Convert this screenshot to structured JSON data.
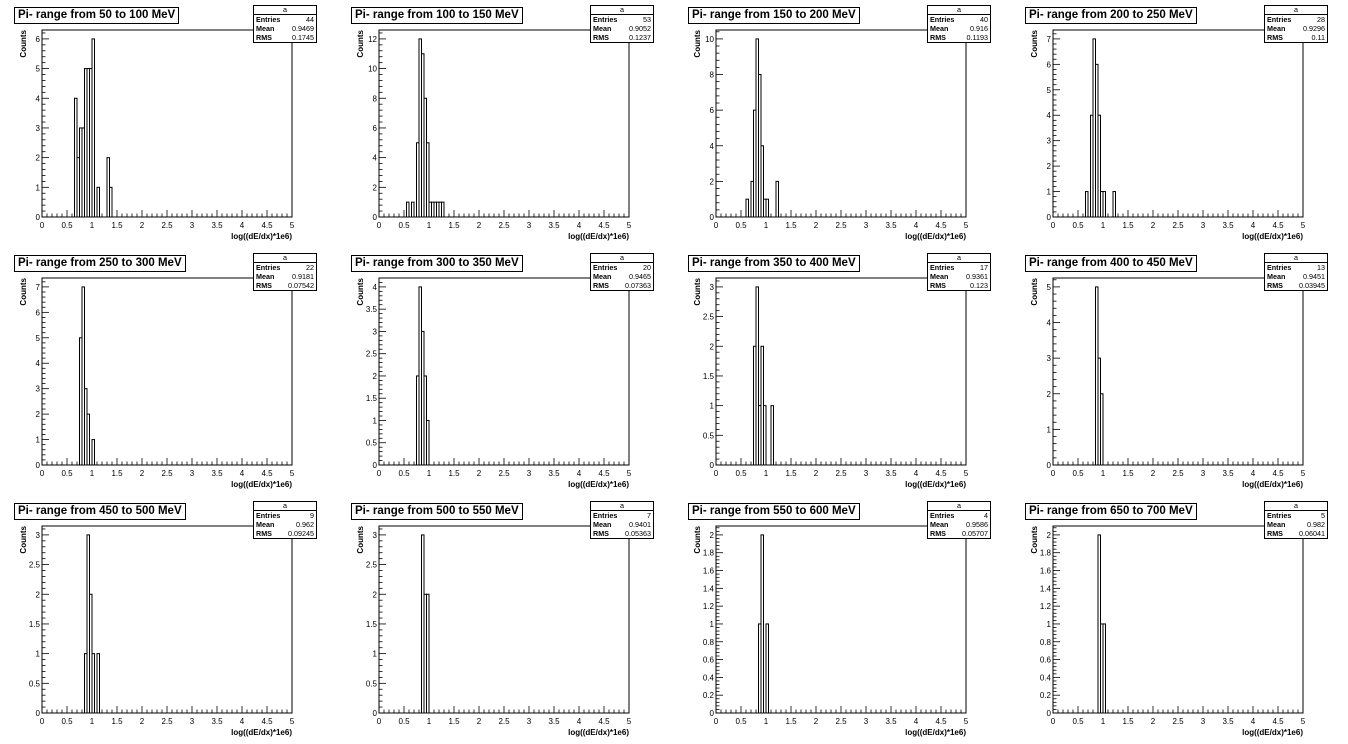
{
  "plots": [
    {
      "title": "Pi- range from 50 to 100 MeV",
      "stats": {
        "name": "a",
        "entries": "44",
        "mean": "0.9469",
        "rms": "0.1745"
      }
    },
    {
      "title": "Pi- range from 100 to 150 MeV",
      "stats": {
        "name": "a",
        "entries": "53",
        "mean": "0.9052",
        "rms": "0.1237"
      }
    },
    {
      "title": "Pi- range from 150 to 200 MeV",
      "stats": {
        "name": "a",
        "entries": "40",
        "mean": "0.916",
        "rms": "0.1193"
      }
    },
    {
      "title": "Pi- range from 200 to 250 MeV",
      "stats": {
        "name": "a",
        "entries": "28",
        "mean": "0.9296",
        "rms": "0.11"
      }
    },
    {
      "title": "Pi- range from 250 to 300 MeV",
      "stats": {
        "name": "a",
        "entries": "22",
        "mean": "0.9181",
        "rms": "0.07542"
      }
    },
    {
      "title": "Pi- range from 300 to 350 MeV",
      "stats": {
        "name": "a",
        "entries": "20",
        "mean": "0.9465",
        "rms": "0.07363"
      }
    },
    {
      "title": "Pi- range from 350 to 400 MeV",
      "stats": {
        "name": "a",
        "entries": "17",
        "mean": "0.9361",
        "rms": "0.123"
      }
    },
    {
      "title": "Pi- range from 400 to 450 MeV",
      "stats": {
        "name": "a",
        "entries": "13",
        "mean": "0.9451",
        "rms": "0.03945"
      }
    },
    {
      "title": "Pi- range from 450 to 500 MeV",
      "stats": {
        "name": "a",
        "entries": "9",
        "mean": "0.962",
        "rms": "0.09245"
      }
    },
    {
      "title": "Pi- range from 500 to 550 MeV",
      "stats": {
        "name": "a",
        "entries": "7",
        "mean": "0.9401",
        "rms": "0.05363"
      }
    },
    {
      "title": "Pi- range from 550 to 600 MeV",
      "stats": {
        "name": "a",
        "entries": "4",
        "mean": "0.9586",
        "rms": "0.05707"
      }
    },
    {
      "title": "Pi- range from 650 to 700 MeV",
      "stats": {
        "name": "a",
        "entries": "5",
        "mean": "0.982",
        "rms": "0.06041"
      }
    }
  ],
  "stats_labels": {
    "entries": "Entries",
    "mean": "Mean",
    "rms": "RMS"
  },
  "chart_data": [
    {
      "type": "bar",
      "title": "Pi- range from 50 to 100 MeV",
      "xlabel": "log((dE/dx)*1e6)",
      "ylabel": "Counts",
      "xlim": [
        0,
        5
      ],
      "ylim": [
        0,
        6.3
      ],
      "bin_width": 0.05,
      "bins": [
        [
          0.65,
          4
        ],
        [
          0.7,
          2
        ],
        [
          0.75,
          3
        ],
        [
          0.8,
          3
        ],
        [
          0.85,
          5
        ],
        [
          0.9,
          5
        ],
        [
          0.95,
          5
        ],
        [
          1.0,
          6
        ],
        [
          1.05,
          0
        ],
        [
          1.1,
          1
        ],
        [
          1.15,
          0
        ],
        [
          1.2,
          0
        ],
        [
          1.25,
          0
        ],
        [
          1.3,
          2
        ],
        [
          1.35,
          1
        ]
      ],
      "ytick_labels": [
        "0",
        "1",
        "2",
        "3",
        "4",
        "5",
        "6"
      ],
      "xtick_labels": [
        "0",
        "0.5",
        "1",
        "1.5",
        "2",
        "2.5",
        "3",
        "3.5",
        "4",
        "4.5",
        "5"
      ]
    },
    {
      "type": "bar",
      "title": "Pi- range from 100 to 150 MeV",
      "xlabel": "log((dE/dx)*1e6)",
      "ylabel": "Counts",
      "xlim": [
        0,
        5
      ],
      "ylim": [
        0,
        12.6
      ],
      "bin_width": 0.05,
      "bins": [
        [
          0.55,
          1
        ],
        [
          0.6,
          0
        ],
        [
          0.65,
          1
        ],
        [
          0.7,
          0
        ],
        [
          0.75,
          5
        ],
        [
          0.8,
          12
        ],
        [
          0.85,
          11
        ],
        [
          0.9,
          8
        ],
        [
          0.95,
          5
        ],
        [
          1.0,
          1
        ],
        [
          1.05,
          1
        ],
        [
          1.1,
          1
        ],
        [
          1.15,
          1
        ],
        [
          1.2,
          1
        ],
        [
          1.25,
          1
        ]
      ],
      "ytick_labels": [
        "0",
        "2",
        "4",
        "6",
        "8",
        "10",
        "12"
      ],
      "xtick_labels": [
        "0",
        "0.5",
        "1",
        "1.5",
        "2",
        "2.5",
        "3",
        "3.5",
        "4",
        "4.5",
        "5"
      ]
    },
    {
      "type": "bar",
      "title": "Pi- range from 150 to 200 MeV",
      "xlabel": "log((dE/dx)*1e6)",
      "ylabel": "Counts",
      "xlim": [
        0,
        5
      ],
      "ylim": [
        0,
        10.5
      ],
      "bin_width": 0.05,
      "bins": [
        [
          0.6,
          1
        ],
        [
          0.65,
          0
        ],
        [
          0.7,
          2
        ],
        [
          0.75,
          6
        ],
        [
          0.8,
          10
        ],
        [
          0.85,
          8
        ],
        [
          0.9,
          4
        ],
        [
          0.95,
          1
        ],
        [
          1.0,
          1
        ],
        [
          1.05,
          0
        ],
        [
          1.1,
          0
        ],
        [
          1.15,
          0
        ],
        [
          1.2,
          2
        ]
      ],
      "ytick_labels": [
        "0",
        "2",
        "4",
        "6",
        "8",
        "10"
      ],
      "xtick_labels": [
        "0",
        "0.5",
        "1",
        "1.5",
        "2",
        "2.5",
        "3",
        "3.5",
        "4",
        "4.5",
        "5"
      ]
    },
    {
      "type": "bar",
      "title": "Pi- range from 200 to 250 MeV",
      "xlabel": "log((dE/dx)*1e6)",
      "ylabel": "Counts",
      "xlim": [
        0,
        5
      ],
      "ylim": [
        0,
        7.35
      ],
      "bin_width": 0.05,
      "bins": [
        [
          0.65,
          1
        ],
        [
          0.7,
          0
        ],
        [
          0.75,
          4
        ],
        [
          0.8,
          7
        ],
        [
          0.85,
          6
        ],
        [
          0.9,
          4
        ],
        [
          0.95,
          1
        ],
        [
          1.0,
          1
        ],
        [
          1.05,
          0
        ],
        [
          1.1,
          0
        ],
        [
          1.15,
          0
        ],
        [
          1.2,
          1
        ]
      ],
      "ytick_labels": [
        "0",
        "1",
        "2",
        "3",
        "4",
        "5",
        "6",
        "7"
      ],
      "xtick_labels": [
        "0",
        "0.5",
        "1",
        "1.5",
        "2",
        "2.5",
        "3",
        "3.5",
        "4",
        "4.5",
        "5"
      ]
    },
    {
      "type": "bar",
      "title": "Pi- range from 250 to 300 MeV",
      "xlabel": "log((dE/dx)*1e6)",
      "ylabel": "Counts",
      "xlim": [
        0,
        5
      ],
      "ylim": [
        0,
        7.35
      ],
      "bin_width": 0.05,
      "bins": [
        [
          0.75,
          5
        ],
        [
          0.8,
          7
        ],
        [
          0.85,
          3
        ],
        [
          0.9,
          2
        ],
        [
          0.95,
          0
        ],
        [
          1.0,
          1
        ]
      ],
      "ytick_labels": [
        "0",
        "1",
        "2",
        "3",
        "4",
        "5",
        "6",
        "7"
      ],
      "xtick_labels": [
        "0",
        "0.5",
        "1",
        "1.5",
        "2",
        "2.5",
        "3",
        "3.5",
        "4",
        "4.5",
        "5"
      ]
    },
    {
      "type": "bar",
      "title": "Pi- range from 300 to 350 MeV",
      "xlabel": "log((dE/dx)*1e6)",
      "ylabel": "Counts",
      "xlim": [
        0,
        5
      ],
      "ylim": [
        0,
        4.2
      ],
      "bin_width": 0.05,
      "bins": [
        [
          0.75,
          2
        ],
        [
          0.8,
          4
        ],
        [
          0.85,
          3
        ],
        [
          0.9,
          2
        ],
        [
          0.95,
          1
        ]
      ],
      "ytick_labels": [
        "0",
        "0.5",
        "1",
        "1.5",
        "2",
        "2.5",
        "3",
        "3.5",
        "4"
      ],
      "xtick_labels": [
        "0",
        "0.5",
        "1",
        "1.5",
        "2",
        "2.5",
        "3",
        "3.5",
        "4",
        "4.5",
        "5"
      ]
    },
    {
      "type": "bar",
      "title": "Pi- range from 350 to 400 MeV",
      "xlabel": "log((dE/dx)*1e6)",
      "ylabel": "Counts",
      "xlim": [
        0,
        5
      ],
      "ylim": [
        0,
        3.15
      ],
      "bin_width": 0.05,
      "bins": [
        [
          0.75,
          2
        ],
        [
          0.8,
          3
        ],
        [
          0.85,
          1
        ],
        [
          0.9,
          2
        ],
        [
          0.95,
          1
        ],
        [
          1.0,
          0
        ],
        [
          1.05,
          0
        ],
        [
          1.1,
          1
        ]
      ],
      "ytick_labels": [
        "0",
        "0.5",
        "1",
        "1.5",
        "2",
        "2.5",
        "3"
      ],
      "xtick_labels": [
        "0",
        "0.5",
        "1",
        "1.5",
        "2",
        "2.5",
        "3",
        "3.5",
        "4",
        "4.5",
        "5"
      ]
    },
    {
      "type": "bar",
      "title": "Pi- range from 400 to 450 MeV",
      "xlabel": "log((dE/dx)*1e6)",
      "ylabel": "Counts",
      "xlim": [
        0,
        5
      ],
      "ylim": [
        0,
        5.25
      ],
      "bin_width": 0.05,
      "bins": [
        [
          0.85,
          5
        ],
        [
          0.9,
          3
        ],
        [
          0.95,
          2
        ]
      ],
      "ytick_labels": [
        "0",
        "1",
        "2",
        "3",
        "4",
        "5"
      ],
      "xtick_labels": [
        "0",
        "0.5",
        "1",
        "1.5",
        "2",
        "2.5",
        "3",
        "3.5",
        "4",
        "4.5",
        "5"
      ]
    },
    {
      "type": "bar",
      "title": "Pi- range from 450 to 500 MeV",
      "xlabel": "log((dE/dx)*1e6)",
      "ylabel": "Counts",
      "xlim": [
        0,
        5
      ],
      "ylim": [
        0,
        3.15
      ],
      "bin_width": 0.05,
      "bins": [
        [
          0.85,
          1
        ],
        [
          0.9,
          3
        ],
        [
          0.95,
          2
        ],
        [
          1.0,
          1
        ],
        [
          1.05,
          0
        ],
        [
          1.1,
          1
        ]
      ],
      "ytick_labels": [
        "0",
        "0.5",
        "1",
        "1.5",
        "2",
        "2.5",
        "3"
      ],
      "xtick_labels": [
        "0",
        "0.5",
        "1",
        "1.5",
        "2",
        "2.5",
        "3",
        "3.5",
        "4",
        "4.5",
        "5"
      ]
    },
    {
      "type": "bar",
      "title": "Pi- range from 500 to 550 MeV",
      "xlabel": "log((dE/dx)*1e6)",
      "ylabel": "Counts",
      "xlim": [
        0,
        5
      ],
      "ylim": [
        0,
        3.15
      ],
      "bin_width": 0.05,
      "bins": [
        [
          0.85,
          3
        ],
        [
          0.9,
          2
        ],
        [
          0.95,
          2
        ]
      ],
      "ytick_labels": [
        "0",
        "0.5",
        "1",
        "1.5",
        "2",
        "2.5",
        "3"
      ],
      "xtick_labels": [
        "0",
        "0.5",
        "1",
        "1.5",
        "2",
        "2.5",
        "3",
        "3.5",
        "4",
        "4.5",
        "5"
      ]
    },
    {
      "type": "bar",
      "title": "Pi- range from 550 to 600 MeV",
      "xlabel": "log((dE/dx)*1e6)",
      "ylabel": "Counts",
      "xlim": [
        0,
        5
      ],
      "ylim": [
        0,
        2.1
      ],
      "bin_width": 0.05,
      "bins": [
        [
          0.85,
          1
        ],
        [
          0.9,
          2
        ],
        [
          0.95,
          0
        ],
        [
          1.0,
          1
        ]
      ],
      "ytick_labels": [
        "0",
        "0.2",
        "0.4",
        "0.6",
        "0.8",
        "1",
        "1.2",
        "1.4",
        "1.6",
        "1.8",
        "2"
      ],
      "xtick_labels": [
        "0",
        "0.5",
        "1",
        "1.5",
        "2",
        "2.5",
        "3",
        "3.5",
        "4",
        "4.5",
        "5"
      ]
    },
    {
      "type": "bar",
      "title": "Pi- range from 650 to 700 MeV",
      "xlabel": "log((dE/dx)*1e6)",
      "ylabel": "Counts",
      "xlim": [
        0,
        5
      ],
      "ylim": [
        0,
        2.1
      ],
      "bin_width": 0.05,
      "bins": [
        [
          0.9,
          2
        ],
        [
          0.95,
          1
        ],
        [
          1.0,
          1
        ]
      ],
      "ytick_labels": [
        "0",
        "0.2",
        "0.4",
        "0.6",
        "0.8",
        "1",
        "1.2",
        "1.4",
        "1.6",
        "1.8",
        "2"
      ],
      "xtick_labels": [
        "0",
        "0.5",
        "1",
        "1.5",
        "2",
        "2.5",
        "3",
        "3.5",
        "4",
        "4.5",
        "5"
      ]
    }
  ]
}
